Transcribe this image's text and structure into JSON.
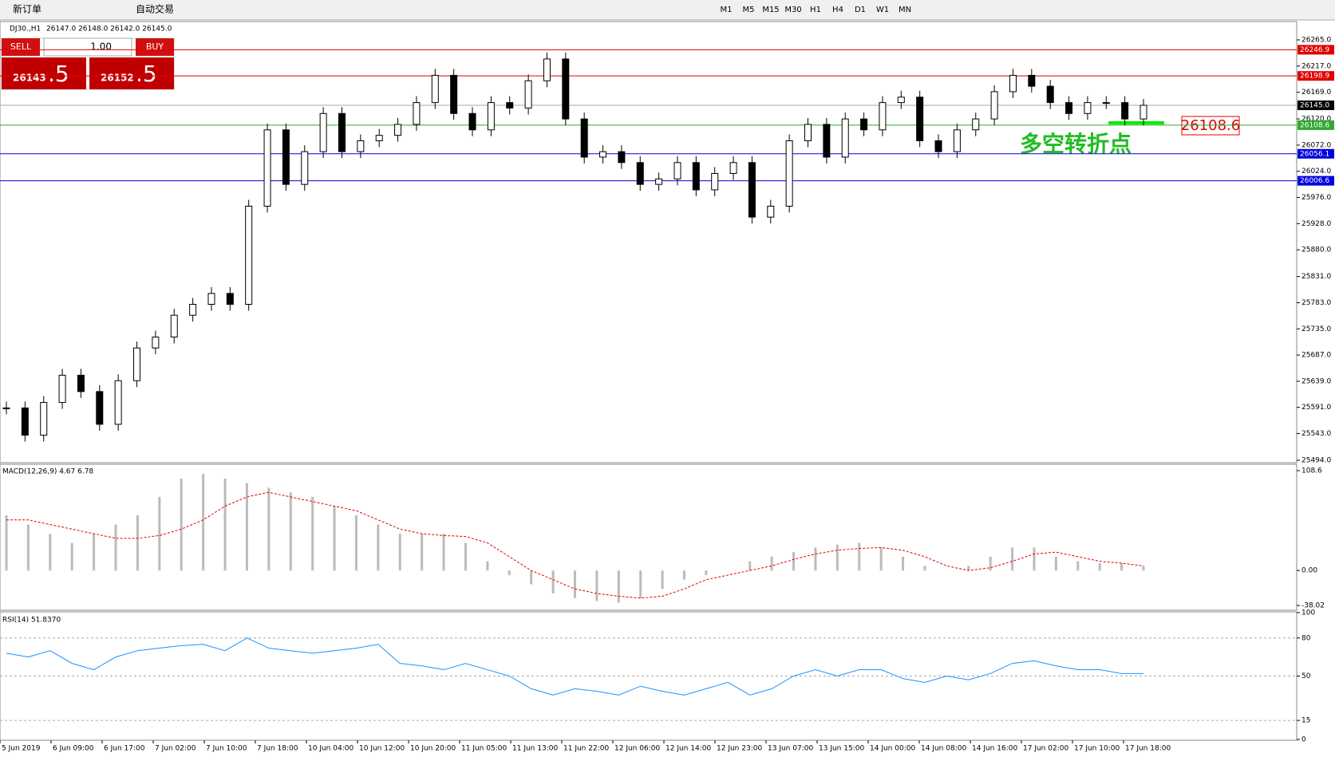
{
  "toolbar": {
    "new_order": "新订单",
    "auto_trading": "自动交易",
    "timeframes": [
      "M1",
      "M5",
      "M15",
      "M30",
      "H1",
      "H4",
      "D1",
      "W1",
      "MN"
    ]
  },
  "chart_header": {
    "symbol": "DJ30.,H1",
    "ohlc": "26147.0 26148.0 26142.0 26145.0"
  },
  "trade_panel": {
    "sell": "SELL",
    "lot": "1.00",
    "buy": "BUY",
    "bid_main": "26143",
    "bid_frac": ".5",
    "ask_main": "26152",
    "ask_frac": ".5"
  },
  "price_chart": {
    "ylim": [
      25494,
      26265
    ],
    "yticks": [
      {
        "value": 26265,
        "label": "26265.0"
      },
      {
        "value": 26217,
        "label": "26217.0"
      },
      {
        "value": 26169,
        "label": "26169.0"
      },
      {
        "value": 26120,
        "label": "26120.0"
      },
      {
        "value": 26072,
        "label": "26072.0"
      },
      {
        "value": 26024,
        "label": "26024.0"
      },
      {
        "value": 25976,
        "label": "25976.0"
      },
      {
        "value": 25928,
        "label": "25928.0"
      },
      {
        "value": 25880,
        "label": "25880.0"
      },
      {
        "value": 25831,
        "label": "25831.0"
      },
      {
        "value": 25783,
        "label": "25783.0"
      },
      {
        "value": 25735,
        "label": "25735.0"
      },
      {
        "value": 25687,
        "label": "25687.0"
      },
      {
        "value": 25639,
        "label": "25639.0"
      },
      {
        "value": 25591,
        "label": "25591.0"
      },
      {
        "value": 25543,
        "label": "25543.0"
      },
      {
        "value": 25494,
        "label": "25494.0"
      }
    ],
    "levels": [
      {
        "value": 26246.9,
        "label": "26246.9",
        "color": "#e00000"
      },
      {
        "value": 26198.9,
        "label": "26198.9",
        "color": "#e00000"
      },
      {
        "value": 26145,
        "label": "26145.0",
        "color": "#000000"
      },
      {
        "value": 26108.6,
        "label": "26108.6",
        "color": "#2eaa2e"
      },
      {
        "value": 26056.1,
        "label": "26056.1",
        "color": "#0000e0"
      },
      {
        "value": 26006.6,
        "label": "26006.6",
        "color": "#0000e0"
      }
    ],
    "closes": [
      25590,
      25540,
      25600,
      25650,
      25620,
      25560,
      25640,
      25700,
      25720,
      25760,
      25780,
      25800,
      25780,
      25960,
      26100,
      26000,
      26060,
      26130,
      26060,
      26080,
      26090,
      26110,
      26150,
      26200,
      26130,
      26100,
      26150,
      26140,
      26190,
      26230,
      26120,
      26050,
      26060,
      26040,
      26000,
      26010,
      26040,
      25990,
      26020,
      26040,
      25940,
      25960,
      26080,
      26110,
      26050,
      26120,
      26100,
      26150,
      26160,
      26080,
      26060,
      26100,
      26120,
      26170,
      26200,
      26180,
      26150,
      26130,
      26150,
      26150,
      26120,
      26145
    ]
  },
  "annotation": {
    "text": "多空转折点",
    "price_label": "26108.6"
  },
  "macd": {
    "label": "MACD(12,26,9) 4.67 6.78",
    "ylim": [
      -38.02,
      108.6
    ],
    "yticks": [
      108.6,
      {
        "value": 0,
        "label": "0.00"
      },
      -38.02
    ],
    "histogram": [
      60,
      50,
      40,
      30,
      40,
      50,
      60,
      80,
      100,
      105,
      100,
      95,
      90,
      85,
      80,
      70,
      60,
      50,
      40,
      40,
      40,
      30,
      10,
      -5,
      -15,
      -25,
      -30,
      -33,
      -35,
      -30,
      -20,
      -10,
      -5,
      0,
      10,
      15,
      20,
      25,
      28,
      30,
      25,
      15,
      5,
      0,
      5,
      15,
      25,
      25,
      15,
      10,
      8,
      8,
      5
    ],
    "signal": [
      55,
      55,
      50,
      45,
      40,
      35,
      35,
      38,
      45,
      55,
      70,
      80,
      85,
      80,
      75,
      70,
      65,
      55,
      45,
      40,
      38,
      37,
      30,
      15,
      0,
      -10,
      -20,
      -25,
      -28,
      -30,
      -28,
      -20,
      -10,
      -5,
      0,
      5,
      12,
      18,
      22,
      24,
      25,
      22,
      15,
      5,
      0,
      3,
      10,
      18,
      20,
      15,
      10,
      8,
      5
    ]
  },
  "rsi": {
    "label": "RSI(14) 51.8370",
    "ylim": [
      0,
      100
    ],
    "yticks": [
      100,
      80,
      50,
      15,
      0
    ],
    "levels": [
      80,
      50,
      15
    ],
    "values": [
      68,
      65,
      70,
      60,
      55,
      65,
      70,
      72,
      74,
      75,
      70,
      80,
      72,
      70,
      68,
      70,
      72,
      75,
      60,
      58,
      55,
      60,
      55,
      50,
      40,
      35,
      40,
      38,
      35,
      42,
      38,
      35,
      40,
      45,
      35,
      40,
      50,
      55,
      50,
      55,
      55,
      48,
      45,
      50,
      47,
      52,
      60,
      62,
      58,
      55,
      55,
      52,
      52
    ]
  },
  "time_axis": [
    "5 Jun 2019",
    "6 Jun 09:00",
    "6 Jun 17:00",
    "7 Jun 02:00",
    "7 Jun 10:00",
    "7 Jun 18:00",
    "10 Jun 04:00",
    "10 Jun 12:00",
    "10 Jun 20:00",
    "11 Jun 05:00",
    "11 Jun 13:00",
    "11 Jun 22:00",
    "12 Jun 06:00",
    "12 Jun 14:00",
    "12 Jun 23:00",
    "13 Jun 07:00",
    "13 Jun 15:00",
    "14 Jun 00:00",
    "14 Jun 08:00",
    "14 Jun 16:00",
    "17 Jun 02:00",
    "17 Jun 10:00",
    "17 Jun 18:00"
  ]
}
